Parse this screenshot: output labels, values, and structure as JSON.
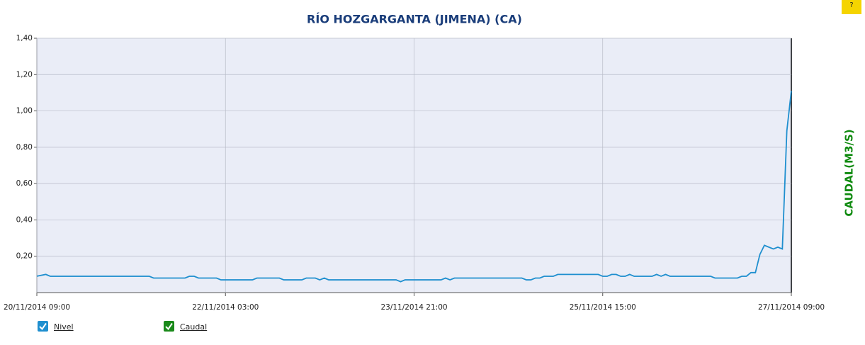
{
  "chart_data": {
    "type": "line",
    "title": "RÍO HOZGARGANTA (JIMENA) (CA)",
    "y_label": "CAUDAL(M3/S)",
    "x": [
      "2014-11-20 09:00",
      "2014-11-20 11:00",
      "2014-11-20 12:00",
      "2014-11-21 10:00",
      "2014-11-21 11:00",
      "2014-11-21 18:00",
      "2014-11-21 19:00",
      "2014-11-21 20:00",
      "2014-11-21 21:00",
      "2014-11-22 01:00",
      "2014-11-22 02:00",
      "2014-11-22 09:00",
      "2014-11-22 10:00",
      "2014-11-22 15:00",
      "2014-11-22 16:00",
      "2014-11-22 20:00",
      "2014-11-22 21:00",
      "2014-11-22 23:00",
      "2014-11-23 00:00",
      "2014-11-23 01:00",
      "2014-11-23 02:00",
      "2014-11-23 17:00",
      "2014-11-23 18:00",
      "2014-11-23 19:00",
      "2014-11-24 03:00",
      "2014-11-24 04:00",
      "2014-11-24 05:00",
      "2014-11-24 06:00",
      "2014-11-24 21:00",
      "2014-11-24 22:00",
      "2014-11-24 23:00",
      "2014-11-25 00:00",
      "2014-11-25 01:00",
      "2014-11-25 02:00",
      "2014-11-25 04:00",
      "2014-11-25 05:00",
      "2014-11-25 14:00",
      "2014-11-25 15:00",
      "2014-11-25 16:00",
      "2014-11-25 17:00",
      "2014-11-25 18:00",
      "2014-11-25 19:00",
      "2014-11-25 20:00",
      "2014-11-25 21:00",
      "2014-11-25 22:00",
      "2014-11-26 02:00",
      "2014-11-26 03:00",
      "2014-11-26 04:00",
      "2014-11-26 05:00",
      "2014-11-26 06:00",
      "2014-11-26 15:00",
      "2014-11-26 16:00",
      "2014-11-26 21:00",
      "2014-11-26 22:00",
      "2014-11-26 23:00",
      "2014-11-27 00:00",
      "2014-11-27 01:00",
      "2014-11-27 02:00",
      "2014-11-27 03:00",
      "2014-11-27 04:00",
      "2014-11-27 05:00",
      "2014-11-27 06:00",
      "2014-11-27 07:00",
      "2014-11-27 08:00",
      "2014-11-27 09:00"
    ],
    "series": [
      {
        "color": "#1f8fcf",
        "values": [
          0.09,
          0.1,
          0.09,
          0.09,
          0.08,
          0.08,
          0.09,
          0.09,
          0.08,
          0.08,
          0.07,
          0.07,
          0.08,
          0.08,
          0.07,
          0.07,
          0.08,
          0.08,
          0.07,
          0.08,
          0.07,
          0.07,
          0.06,
          0.07,
          0.07,
          0.08,
          0.07,
          0.08,
          0.08,
          0.07,
          0.07,
          0.08,
          0.08,
          0.09,
          0.09,
          0.1,
          0.1,
          0.09,
          0.09,
          0.1,
          0.1,
          0.09,
          0.09,
          0.1,
          0.09,
          0.09,
          0.1,
          0.09,
          0.1,
          0.09,
          0.09,
          0.08,
          0.08,
          0.09,
          0.09,
          0.11,
          0.11,
          0.21,
          0.26,
          0.25,
          0.24,
          0.25,
          0.24,
          0.89,
          1.11
        ]
      }
    ],
    "xlim": [
      "2014-11-20 09:00",
      "2014-11-27 09:00"
    ],
    "xticks": [
      {
        "value": "2014-11-20 09:00",
        "label": "20/11/2014 09:00"
      },
      {
        "value": "2014-11-22 03:00",
        "label": "22/11/2014 03:00"
      },
      {
        "value": "2014-11-23 21:00",
        "label": "23/11/2014 21:00"
      },
      {
        "value": "2014-11-25 15:00",
        "label": "25/11/2014 15:00"
      },
      {
        "value": "2014-11-27 09:00",
        "label": "27/11/2014 09:00"
      }
    ],
    "ylim": [
      0,
      1.4
    ],
    "yticks": [
      {
        "value": 0.2,
        "label": "0,20"
      },
      {
        "value": 0.4,
        "label": "0,40"
      },
      {
        "value": 0.6,
        "label": "0,60"
      },
      {
        "value": 0.8,
        "label": "0,80"
      },
      {
        "value": 1.0,
        "label": "1,00"
      },
      {
        "value": 1.2,
        "label": "1,20"
      },
      {
        "value": 1.4,
        "label": "1,40"
      }
    ],
    "grid": true,
    "legend": [
      {
        "label": "Nivel",
        "color": "#1f8fcf"
      },
      {
        "label": "Caudal",
        "color": "#1a8a1a"
      }
    ],
    "help_button": "?"
  }
}
